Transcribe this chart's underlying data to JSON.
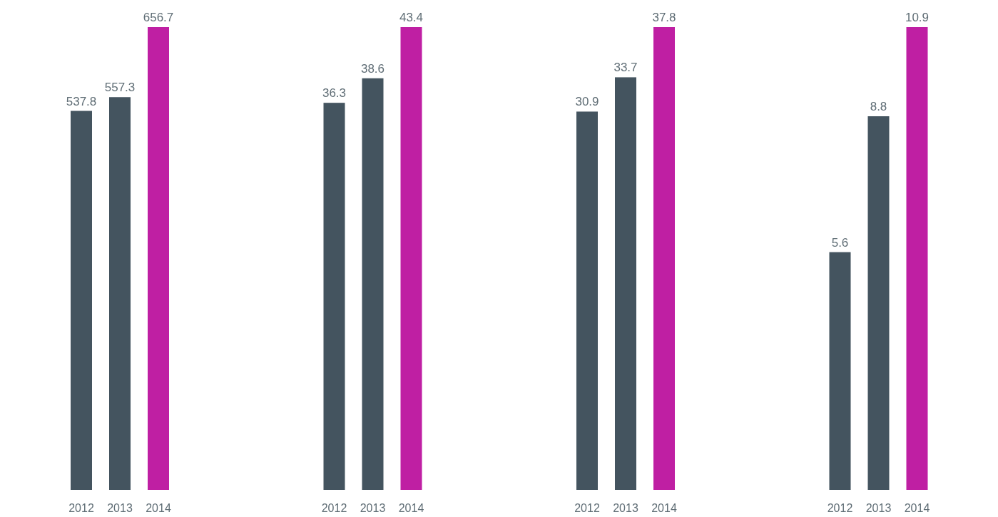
{
  "chart_data": [
    {
      "type": "bar",
      "categories": [
        "2012",
        "2013",
        "2014"
      ],
      "values": [
        537.8,
        557.3,
        656.7
      ],
      "colors": [
        "#44545f",
        "#44545f",
        "#bf1fa3"
      ],
      "data_labels": true,
      "tick_labels": "x"
    },
    {
      "type": "bar",
      "categories": [
        "2012",
        "2013",
        "2014"
      ],
      "values": [
        36.3,
        38.6,
        43.4
      ],
      "colors": [
        "#44545f",
        "#44545f",
        "#bf1fa3"
      ],
      "data_labels": true,
      "tick_labels": "x"
    },
    {
      "type": "bar",
      "categories": [
        "2012",
        "2013",
        "2014"
      ],
      "values": [
        30.9,
        33.7,
        37.8
      ],
      "colors": [
        "#44545f",
        "#44545f",
        "#bf1fa3"
      ],
      "data_labels": true,
      "tick_labels": "x"
    },
    {
      "type": "bar",
      "categories": [
        "2012",
        "2013",
        "2014"
      ],
      "values": [
        5.6,
        8.8,
        10.9
      ],
      "colors": [
        "#44545f",
        "#44545f",
        "#bf1fa3"
      ],
      "data_labels": true,
      "tick_labels": "x"
    }
  ]
}
